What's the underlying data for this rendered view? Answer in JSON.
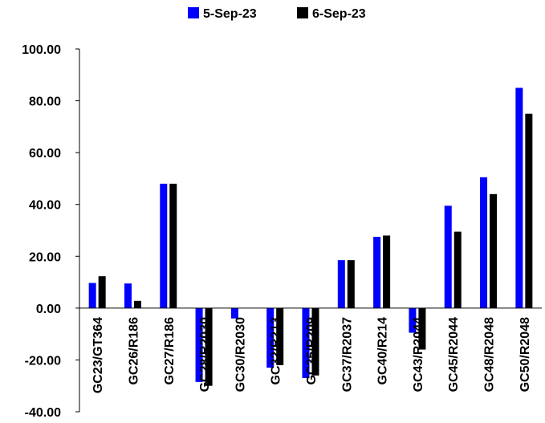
{
  "chart_data": {
    "type": "bar",
    "categories": [
      "GC23/GT364",
      "GC26/R186",
      "GC27/R186",
      "GC28/R2030",
      "GC30/R2030",
      "GC32/R213",
      "GC35/R209",
      "GC37/R2037",
      "GC40/R214",
      "GC43/R2044",
      "GC45/R2044",
      "GC48/R2048",
      "GC50/R2048"
    ],
    "series": [
      {
        "name": "5-Sep-23",
        "color": "#0000FF",
        "values": [
          9.7,
          9.5,
          48.0,
          -28.5,
          -4.0,
          -23.0,
          -27.0,
          18.5,
          27.5,
          -9.5,
          39.5,
          50.5,
          85.0
        ]
      },
      {
        "name": "6-Sep-23",
        "color": "#000000",
        "values": [
          12.3,
          2.8,
          48.0,
          -30.0,
          null,
          -22.0,
          -26.0,
          18.5,
          28.0,
          -16.0,
          29.5,
          44.0,
          75.0
        ]
      }
    ],
    "ylim": [
      -40,
      100
    ],
    "yticks": [
      -40,
      -20,
      0,
      20,
      40,
      60,
      80,
      100
    ],
    "ytick_labels": [
      "-40.00",
      "-20.00",
      "0.00",
      "20.00",
      "40.00",
      "60.00",
      "80.00",
      "100.00"
    ],
    "title": "",
    "xlabel": "",
    "ylabel": "",
    "grid": false,
    "legend_position": "top-center"
  }
}
